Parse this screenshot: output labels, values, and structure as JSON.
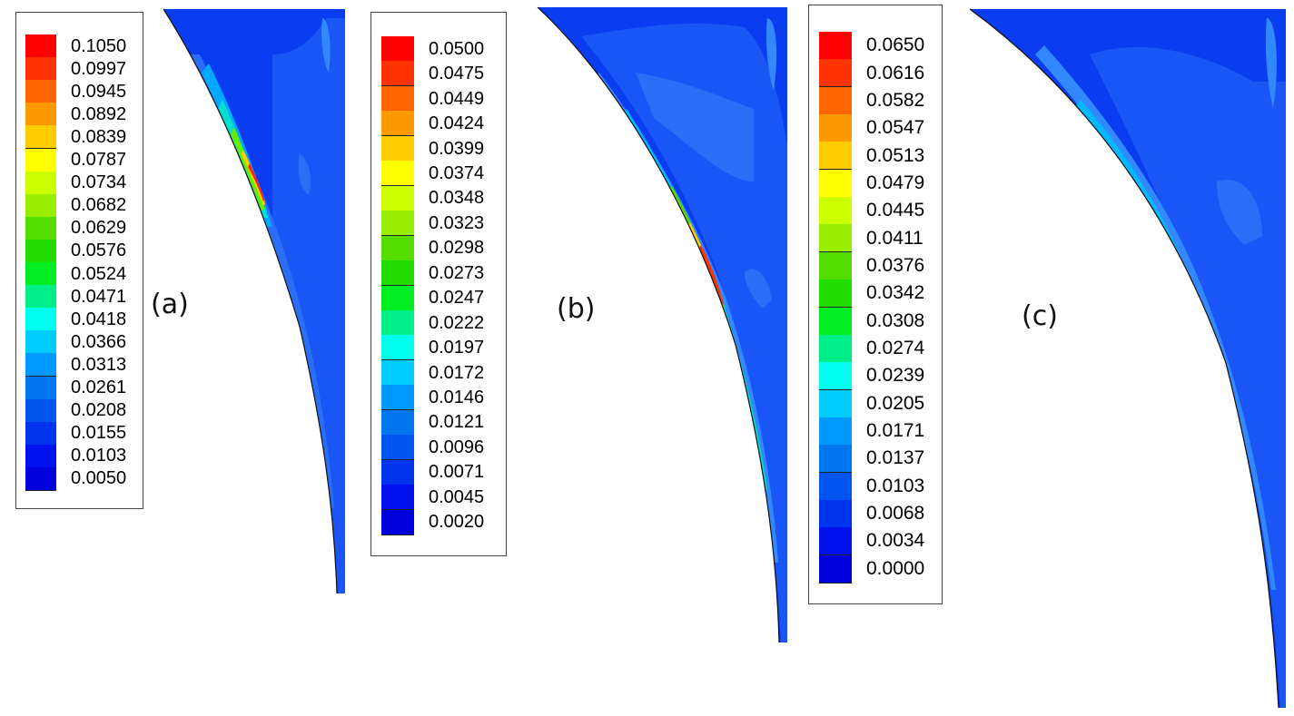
{
  "panels": [
    {
      "label": "(a)",
      "legend_values": [
        "0.1050",
        "0.0997",
        "0.0945",
        "0.0892",
        "0.0839",
        "0.0787",
        "0.0734",
        "0.0682",
        "0.0629",
        "0.0576",
        "0.0524",
        "0.0471",
        "0.0418",
        "0.0366",
        "0.0313",
        "0.0261",
        "0.0208",
        "0.0155",
        "0.0103",
        "0.0050"
      ]
    },
    {
      "label": "(b)",
      "legend_values": [
        "0.0500",
        "0.0475",
        "0.0449",
        "0.0424",
        "0.0399",
        "0.0374",
        "0.0348",
        "0.0323",
        "0.0298",
        "0.0273",
        "0.0247",
        "0.0222",
        "0.0197",
        "0.0172",
        "0.0146",
        "0.0121",
        "0.0096",
        "0.0071",
        "0.0045",
        "0.0020"
      ]
    },
    {
      "label": "(c)",
      "legend_values": [
        "0.0650",
        "0.0616",
        "0.0582",
        "0.0547",
        "0.0513",
        "0.0479",
        "0.0445",
        "0.0411",
        "0.0376",
        "0.0342",
        "0.0308",
        "0.0274",
        "0.0239",
        "0.0205",
        "0.0171",
        "0.0137",
        "0.0103",
        "0.0068",
        "0.0034",
        "0.0000"
      ]
    }
  ],
  "colormap": [
    "#ff0000",
    "#ff3300",
    "#ff6600",
    "#ff9900",
    "#ffcc00",
    "#ffff00",
    "#ccff00",
    "#99ee00",
    "#55dd00",
    "#22dd00",
    "#00ee22",
    "#00ee88",
    "#00ffee",
    "#00ccff",
    "#0099ff",
    "#0077ee",
    "#0055ee",
    "#0033ee",
    "#0011ee",
    "#0000dd"
  ]
}
